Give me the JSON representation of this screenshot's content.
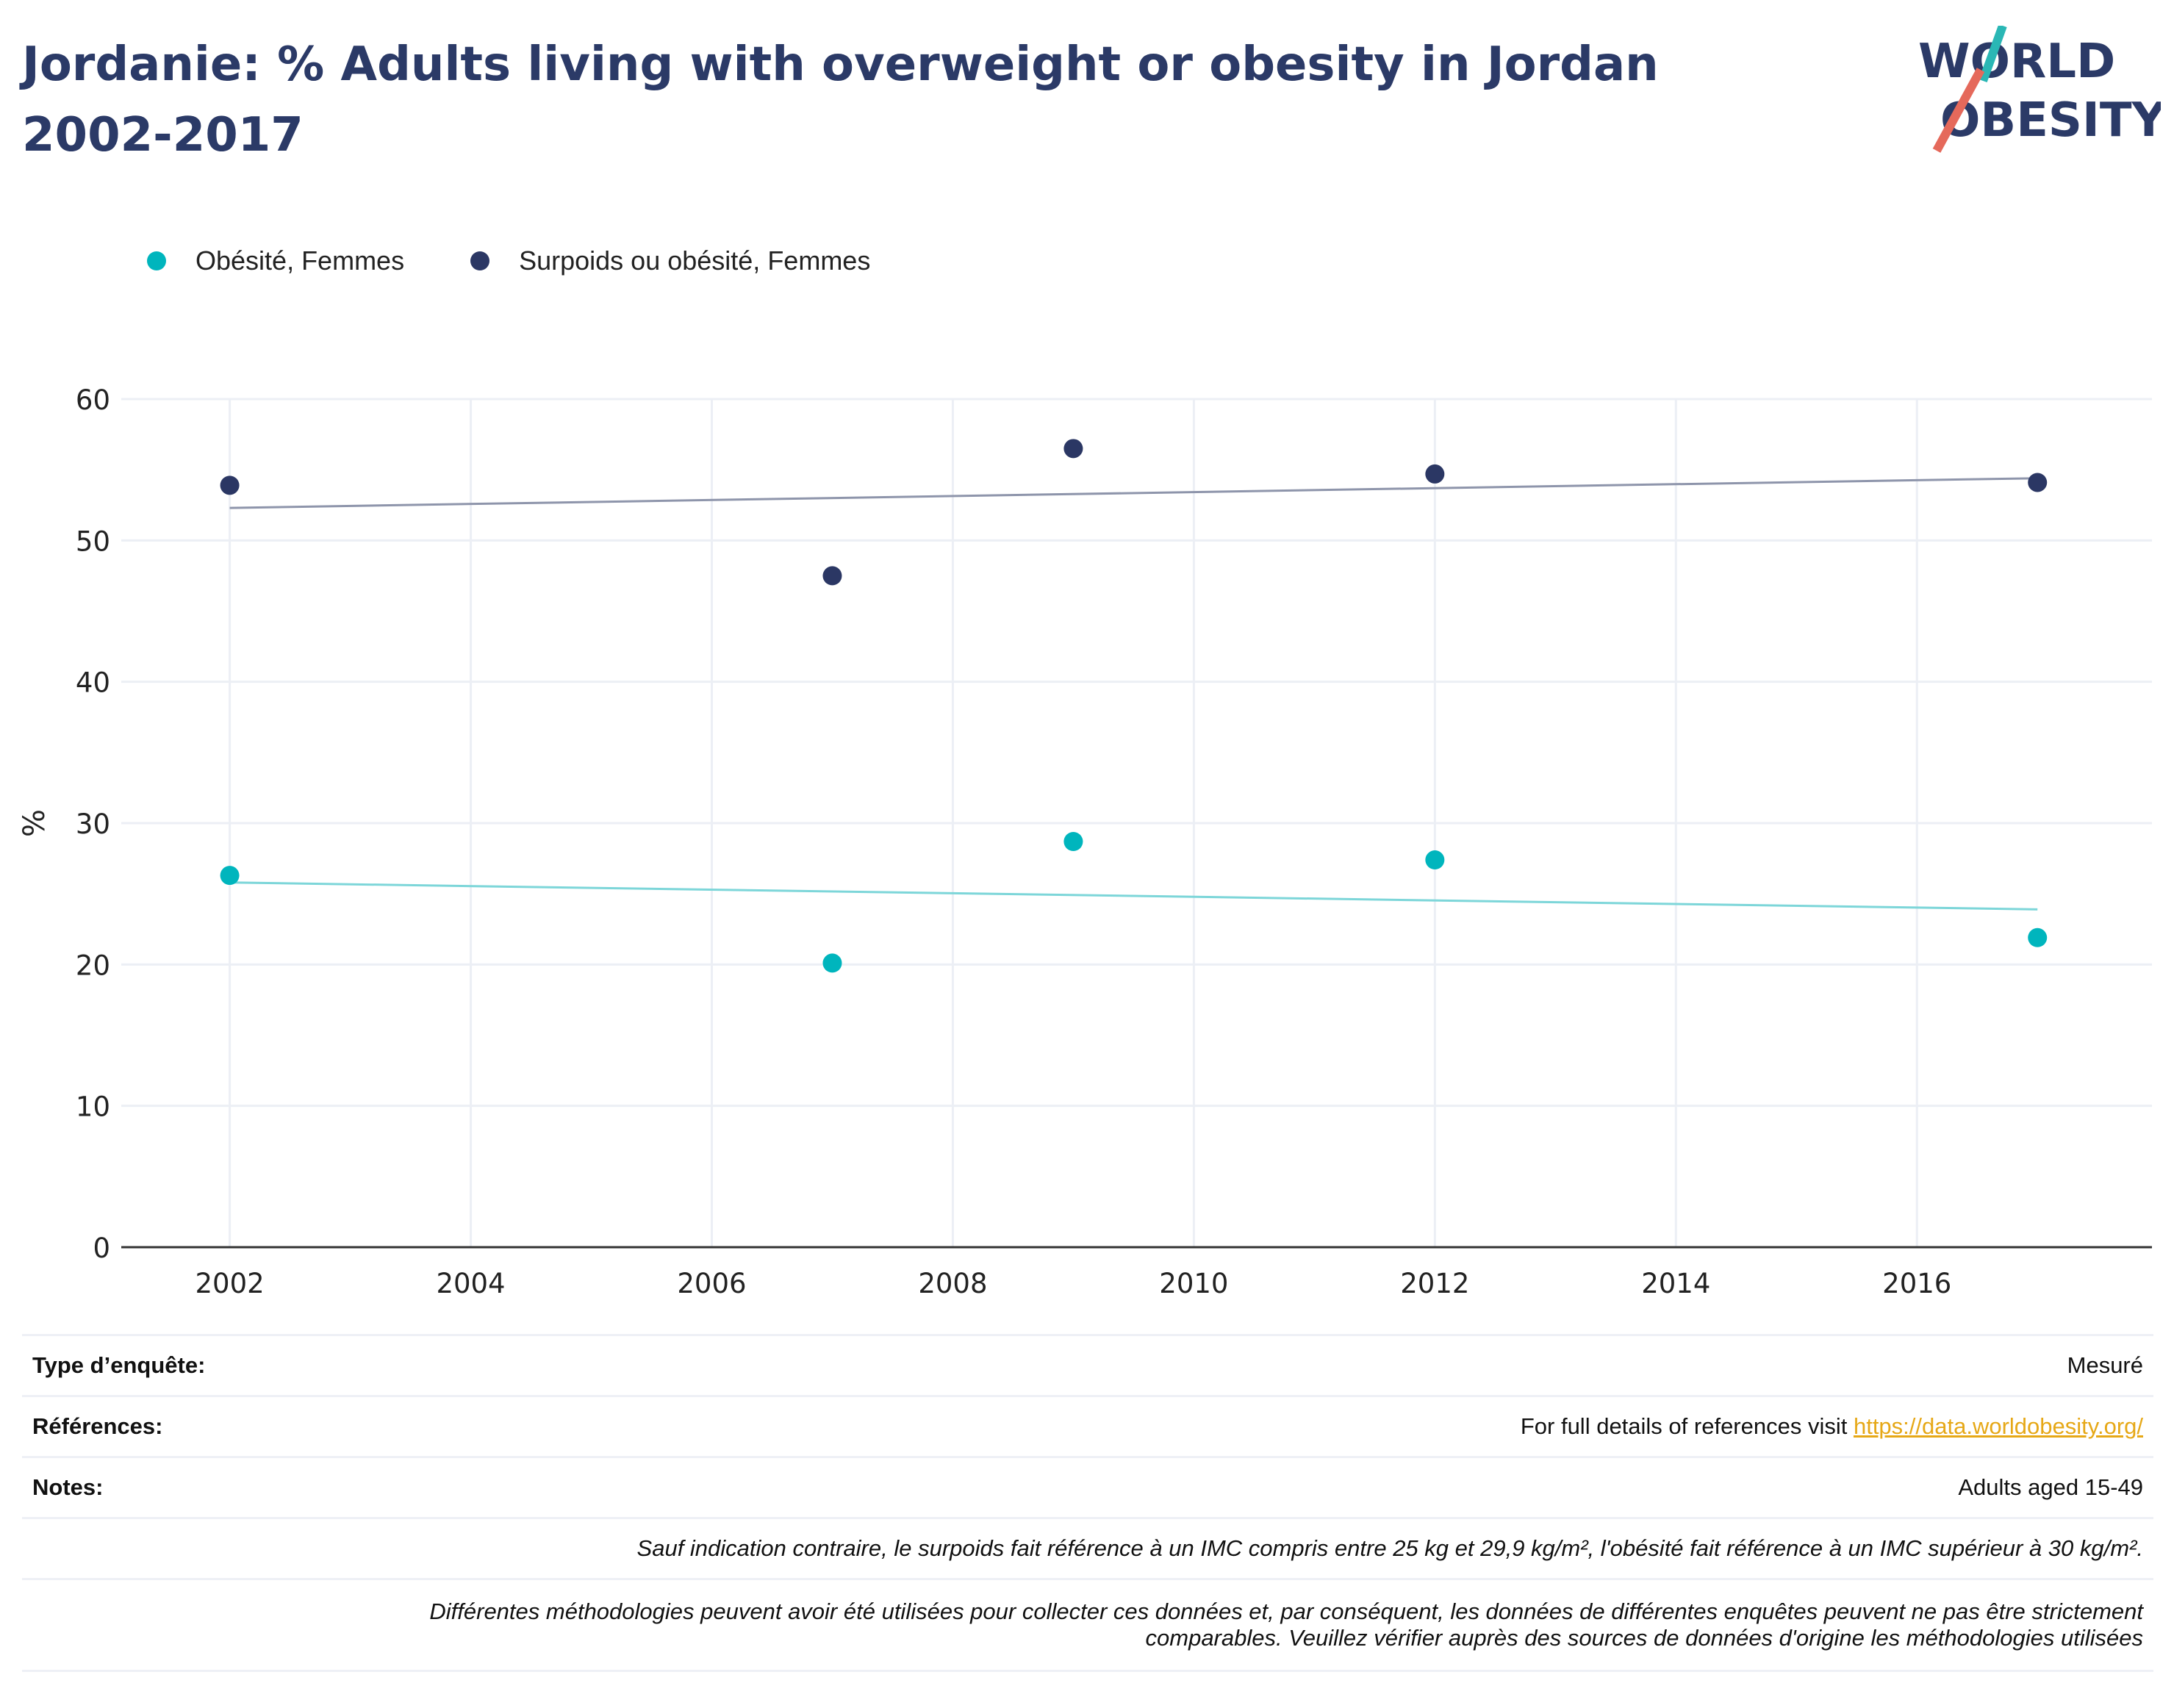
{
  "title": "Jordanie: % Adults living with overweight or obesity in Jordan 2002-2017",
  "logo": {
    "line1": "WORLD",
    "line2": "OBESITY",
    "accent_teal": "#2ab7b5",
    "accent_red": "#e5695b"
  },
  "colors": {
    "title": "#2b3a67",
    "obesity": "#00b5bd",
    "overweight": "#2b3764",
    "obesity_trend": "#7dd6d9",
    "overweight_trend": "#8e95ab",
    "grid": "#eceff5"
  },
  "chart_data": {
    "type": "scatter",
    "xlabel": "",
    "ylabel": "%",
    "xlim": [
      2001.1,
      2017.95
    ],
    "ylim": [
      0,
      60
    ],
    "xticks": [
      2002,
      2004,
      2006,
      2008,
      2010,
      2012,
      2014,
      2016
    ],
    "yticks": [
      0,
      10,
      20,
      30,
      40,
      50,
      60
    ],
    "grid": true,
    "legend_position": "top-left",
    "series": [
      {
        "name": "Obésité, Femmes",
        "color": "#00b5bd",
        "x": [
          2002,
          2007,
          2009,
          2012,
          2017
        ],
        "y": [
          26.3,
          20.1,
          28.7,
          27.4,
          21.9
        ],
        "trend": [
          [
            2002,
            25.8
          ],
          [
            2017,
            23.9
          ]
        ]
      },
      {
        "name": "Surpoids ou obésité, Femmes",
        "color": "#2b3764",
        "x": [
          2002,
          2007,
          2009,
          2012,
          2017
        ],
        "y": [
          53.9,
          47.5,
          56.5,
          54.7,
          54.1
        ],
        "trend": [
          [
            2002,
            52.3
          ],
          [
            2017,
            54.4
          ]
        ]
      }
    ]
  },
  "table": {
    "survey_label": "Type d’enquête:",
    "survey_value": "Mesuré",
    "references_label": "Références:",
    "references_text": "For full details of references visit ",
    "references_link": "https://data.worldobesity.org/",
    "notes_label": "Notes:",
    "notes_value": "Adults aged 15-49",
    "note_bmi": "Sauf indication contraire, le surpoids fait référence à un IMC compris entre 25 kg et 29,9 kg/m², l'obésité fait référence à un IMC supérieur à 30 kg/m².",
    "note_methods_1": "Différentes méthodologies peuvent avoir été utilisées pour collecter ces données et, par conséquent, les données de différentes enquêtes peuvent ne pas être strictement",
    "note_methods_2": "comparables. Veuillez vérifier auprès des sources de données d'origine les méthodologies utilisées"
  }
}
